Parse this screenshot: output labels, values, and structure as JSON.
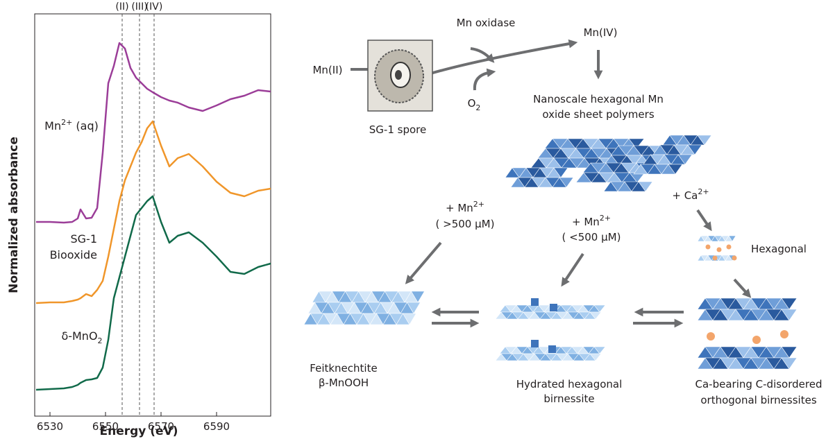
{
  "chart_data": {
    "type": "line",
    "xlabel": "Energy (eV)",
    "ylabel": "Normalized absorbance",
    "xlim": [
      6524.5,
      6609.5
    ],
    "xticks": [
      6530,
      6550,
      6570,
      6590
    ],
    "ylim": [
      0,
      580
    ],
    "x": [
      6525,
      6530,
      6535,
      6538,
      6540,
      6541,
      6543,
      6545,
      6547,
      6549,
      6551,
      6553,
      6555,
      6557,
      6559,
      6561,
      6563,
      6565,
      6567,
      6570,
      6573,
      6576,
      6580,
      6585,
      6590,
      6595,
      6600,
      6605,
      6609.5
    ],
    "markers": [
      {
        "x": 6556,
        "label": "(II)"
      },
      {
        "x": 6562.25,
        "label": "(III)"
      },
      {
        "x": 6567.5,
        "label": "(IV)"
      }
    ],
    "series": [
      {
        "label": [
          [
            {
              "t": "Mn"
            },
            {
              "t": "2+",
              "sup": true
            },
            {
              "t": " (aq)"
            }
          ]
        ],
        "color": "#9b3d98",
        "values": [
          280,
          280,
          279,
          280,
          285,
          298,
          285,
          286,
          300,
          380,
          480,
          505,
          538,
          530,
          502,
          488,
          480,
          472,
          467,
          460,
          455,
          452,
          445,
          440,
          448,
          457,
          462,
          470,
          468
        ]
      },
      {
        "label": [
          [
            {
              "t": "SG-1"
            }
          ],
          [
            {
              "t": "Biooxide"
            }
          ]
        ],
        "color": "#f0962a",
        "values": [
          163,
          164,
          164,
          166,
          168,
          170,
          176,
          173,
          182,
          195,
          230,
          270,
          310,
          340,
          360,
          380,
          395,
          415,
          425,
          390,
          360,
          372,
          378,
          360,
          338,
          322,
          317,
          325,
          328
        ]
      },
      {
        "label": [
          [
            {
              "t": "δ-MnO"
            },
            {
              "t": "2",
              "sub": true
            }
          ]
        ],
        "color": "#116a4a",
        "values": [
          38,
          39,
          40,
          42,
          45,
          48,
          52,
          53,
          55,
          70,
          110,
          170,
          200,
          230,
          260,
          290,
          300,
          310,
          317,
          280,
          250,
          260,
          265,
          250,
          230,
          208,
          205,
          215,
          220
        ]
      }
    ]
  },
  "diagram": {
    "nodes": [
      {
        "lines": [
          [
            {
              "t": "Mn oxidase"
            }
          ]
        ]
      },
      {
        "lines": [
          [
            {
              "t": "Mn(IV)"
            }
          ]
        ]
      },
      {
        "lines": [
          [
            {
              "t": "Mn(II)"
            }
          ]
        ]
      },
      {
        "lines": [
          [
            {
              "t": "O"
            },
            {
              "t": "2",
              "sub": true
            }
          ]
        ]
      },
      {
        "lines": [
          [
            {
              "t": "SG-1 spore"
            }
          ]
        ]
      },
      {
        "lines": [
          [
            {
              "t": "Nanoscale hexagonal Mn"
            }
          ],
          [
            {
              "t": "oxide sheet polymers"
            }
          ]
        ]
      },
      {
        "lines": [
          [
            {
              "t": "+ Ca"
            },
            {
              "t": "2+",
              "sup": true
            }
          ]
        ]
      },
      {
        "lines": [
          [
            {
              "t": "+ Mn"
            },
            {
              "t": "2+",
              "sup": true
            }
          ],
          [
            {
              "t": "( >500 μM)"
            }
          ]
        ]
      },
      {
        "lines": [
          [
            {
              "t": "+ Mn"
            },
            {
              "t": "2+",
              "sup": true
            }
          ],
          [
            {
              "t": "( <500 μM)"
            }
          ]
        ]
      },
      {
        "lines": [
          [
            {
              "t": "Hexagonal"
            }
          ]
        ]
      },
      {
        "lines": [
          [
            {
              "t": "Feitknechtite"
            }
          ],
          [
            {
              "t": "β-MnOOH"
            }
          ]
        ]
      },
      {
        "lines": [
          [
            {
              "t": "Hydrated hexagonal"
            }
          ],
          [
            {
              "t": "birnessite"
            }
          ]
        ]
      },
      {
        "lines": [
          [
            {
              "t": "Ca-bearing C-disordered"
            }
          ],
          [
            {
              "t": "orthogonal birnessites"
            }
          ]
        ]
      }
    ]
  }
}
